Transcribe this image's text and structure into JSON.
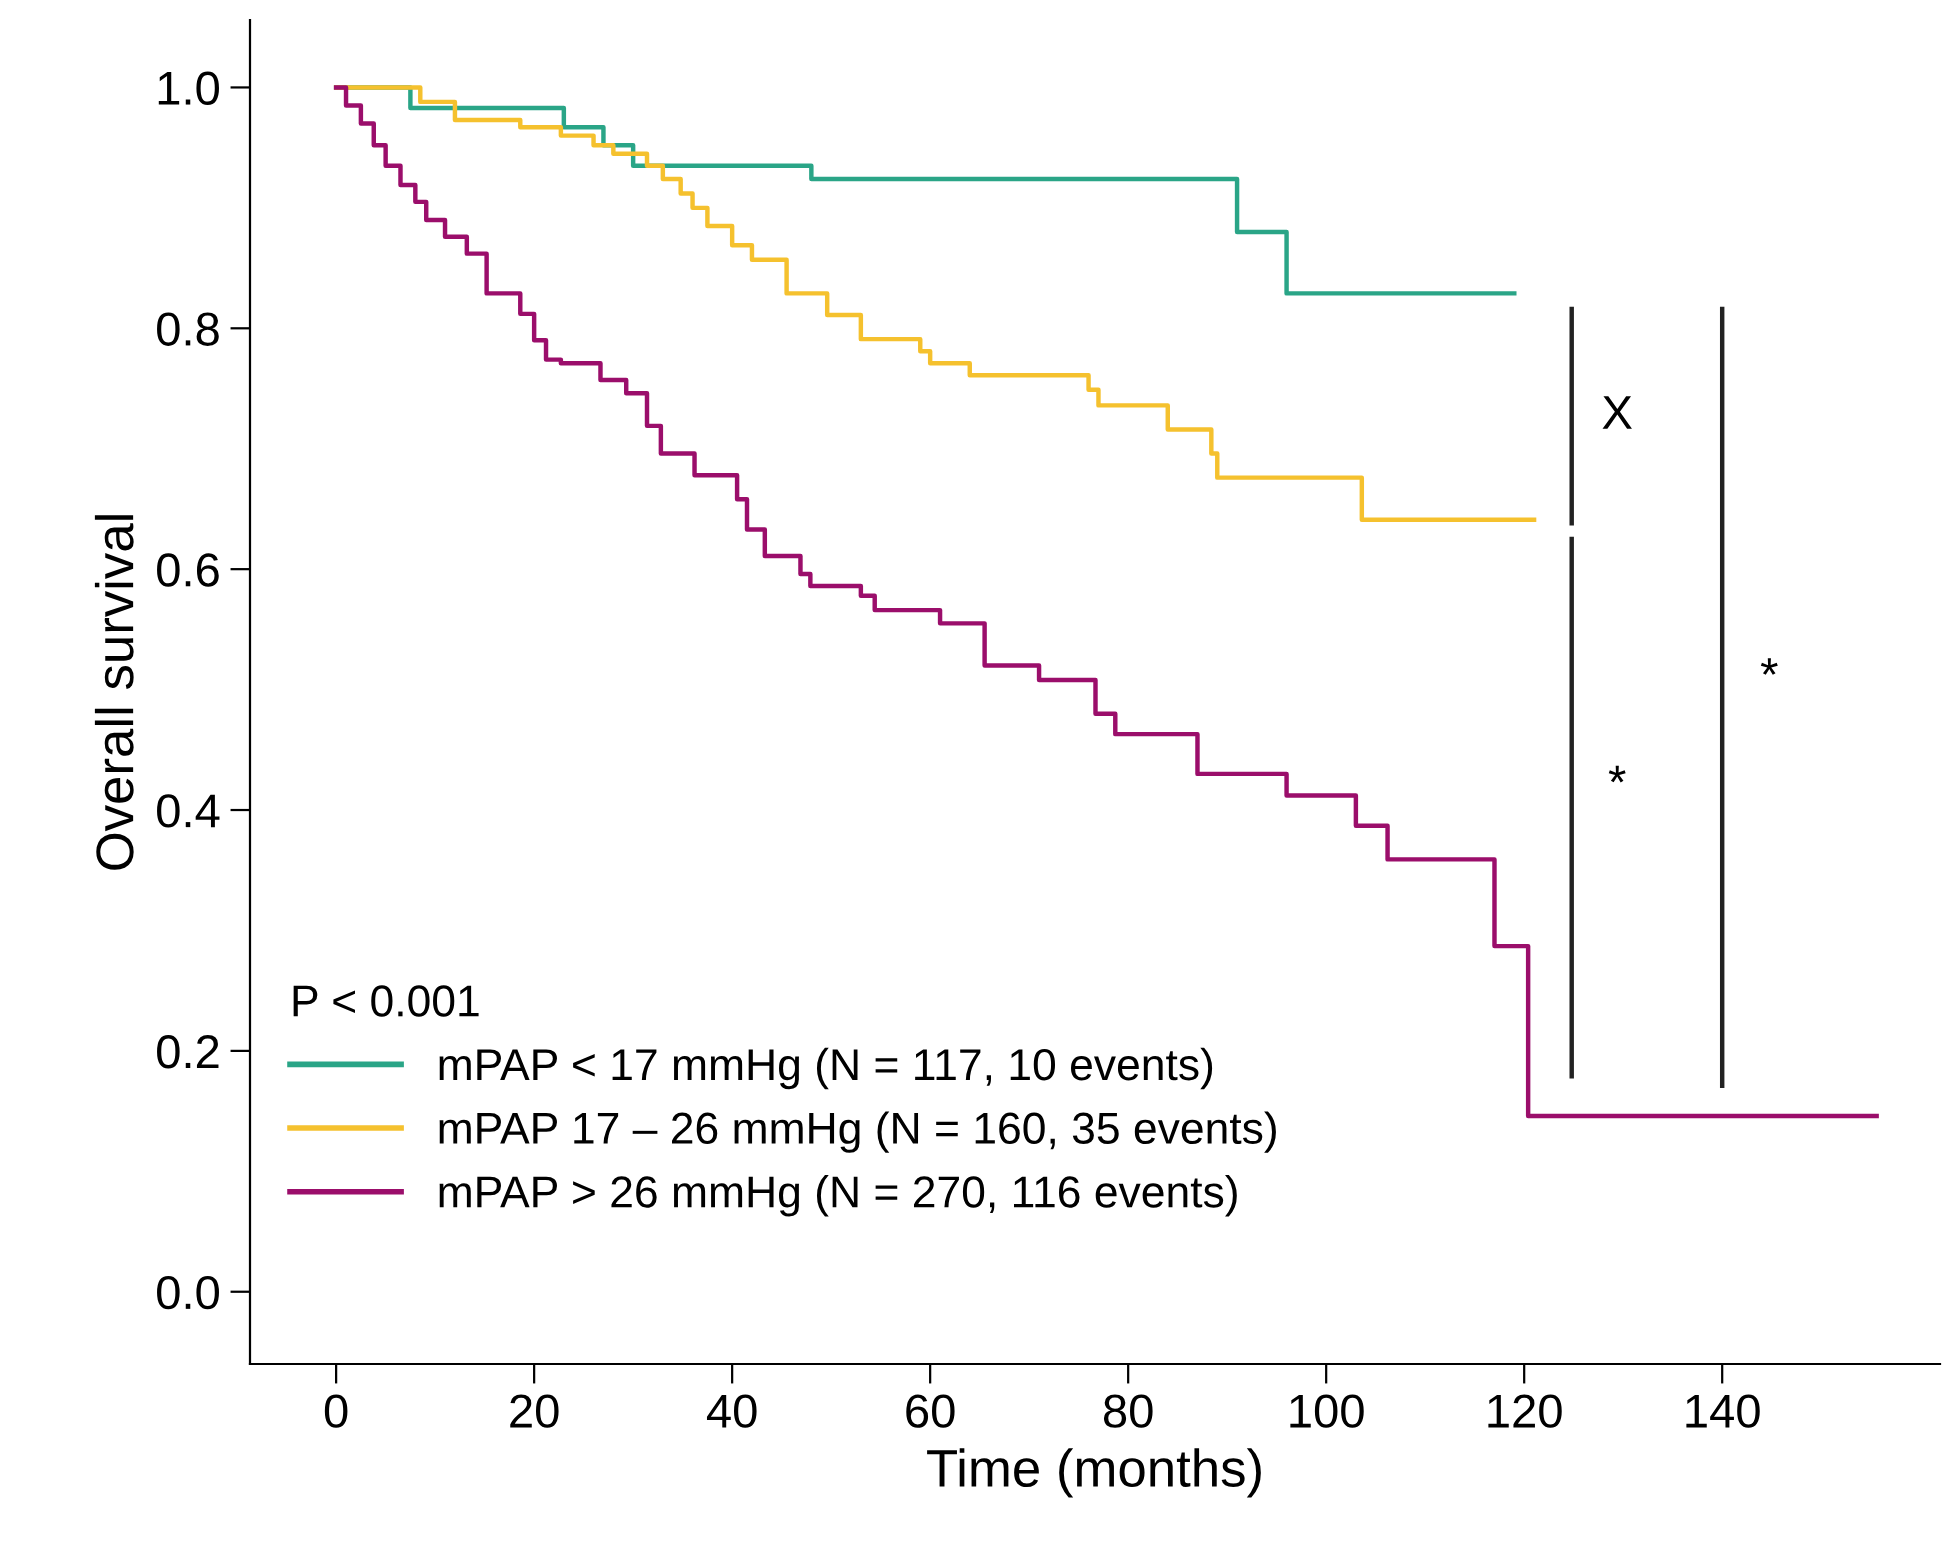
{
  "chart_data": {
    "type": "step",
    "xlabel": "Time (months)",
    "ylabel": "Overall survival",
    "legend_title": "P < 0.001",
    "legend": "bottom left",
    "grid": false,
    "xlim": [
      -8.7,
      162
    ],
    "ylim": [
      -0.06,
      1.056
    ],
    "xticks": [
      0,
      20,
      40,
      60,
      80,
      100,
      120,
      140
    ],
    "yticks": [
      {
        "value": 0,
        "label": "0.0"
      },
      {
        "value": 0.2,
        "label": "0.2"
      },
      {
        "value": 0.4,
        "label": "0.4"
      },
      {
        "value": 0.6,
        "label": "0.6"
      },
      {
        "value": 0.8,
        "label": "0.8"
      },
      {
        "value": 1,
        "label": "1.0"
      }
    ],
    "series": [
      {
        "name": "mPAP < 17 mmHg (N = 117, 10 events)",
        "color": "#2aa587",
        "x": [
          0,
          7.5,
          23,
          27,
          30,
          48,
          91,
          96,
          119
        ],
        "values": [
          1.0,
          0.983,
          0.967,
          0.952,
          0.935,
          0.924,
          0.88,
          0.829,
          0.829
        ]
      },
      {
        "name": "mPAP 17 – 26 mmHg (N = 160, 35 events)",
        "color": "#f5c12e",
        "x": [
          0,
          8.5,
          12,
          18.6,
          22.7,
          26,
          28,
          31.4,
          33,
          34.8,
          36,
          37.5,
          40,
          42,
          45.5,
          49.6,
          53,
          59,
          60,
          64,
          76,
          77,
          84,
          88.4,
          89,
          103.6,
          121
        ],
        "values": [
          1.0,
          0.988,
          0.973,
          0.967,
          0.96,
          0.952,
          0.945,
          0.935,
          0.924,
          0.912,
          0.9,
          0.885,
          0.869,
          0.857,
          0.829,
          0.811,
          0.791,
          0.781,
          0.771,
          0.761,
          0.749,
          0.736,
          0.716,
          0.696,
          0.676,
          0.641,
          0.641
        ]
      },
      {
        "name": "mPAP > 26 mmHg (N = 270, 116 events)",
        "color": "#9b0e6b",
        "x": [
          0,
          1,
          2.5,
          3.8,
          5,
          6.5,
          8,
          9.1,
          11,
          13.2,
          15.2,
          18.6,
          20,
          21.2,
          22.7,
          26.7,
          29.3,
          31.4,
          32.8,
          36.2,
          40.5,
          41.5,
          43.3,
          46.9,
          47.9,
          53,
          54.4,
          57,
          61,
          63,
          65.5,
          71,
          76.7,
          78.7,
          87,
          96,
          103,
          106.2,
          117,
          120.4,
          155.6
        ],
        "values": [
          1.0,
          0.985,
          0.97,
          0.952,
          0.935,
          0.919,
          0.905,
          0.89,
          0.876,
          0.862,
          0.829,
          0.812,
          0.79,
          0.774,
          0.771,
          0.757,
          0.746,
          0.719,
          0.696,
          0.678,
          0.658,
          0.633,
          0.611,
          0.596,
          0.586,
          0.578,
          0.566,
          0.566,
          0.555,
          0.555,
          0.52,
          0.508,
          0.48,
          0.463,
          0.43,
          0.412,
          0.387,
          0.359,
          0.287,
          0.146,
          0.146
        ]
      }
    ],
    "annotations": [
      "X",
      "*",
      "*"
    ]
  }
}
